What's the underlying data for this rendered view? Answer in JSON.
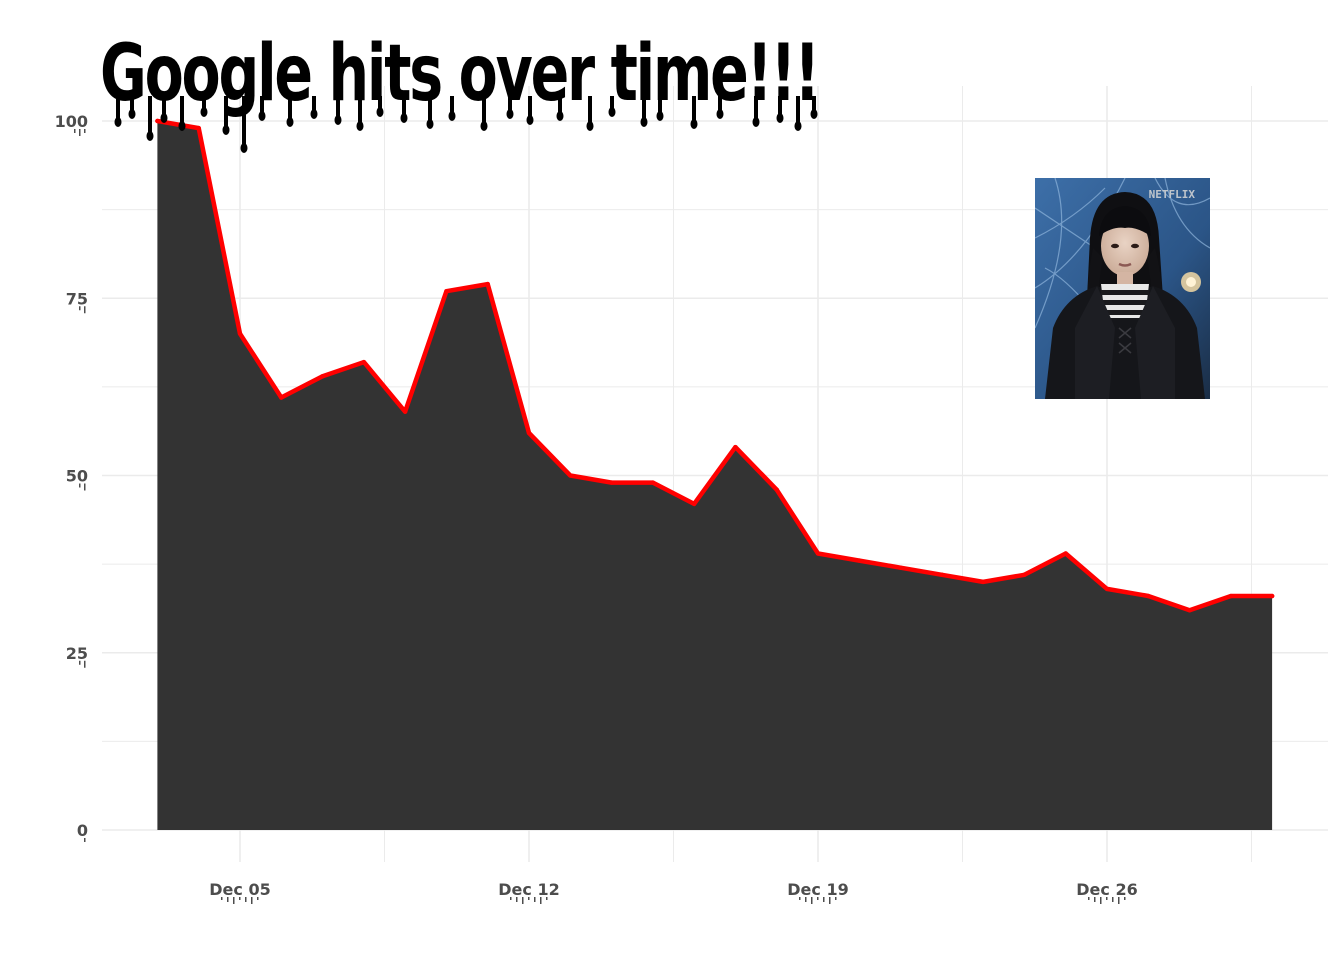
{
  "chart_data": {
    "type": "area",
    "title": "Google hits over time!!!",
    "xlabel": "",
    "ylabel": "",
    "x": [
      "2022-12-03",
      "2022-12-04",
      "2022-12-05",
      "2022-12-06",
      "2022-12-07",
      "2022-12-08",
      "2022-12-09",
      "2022-12-10",
      "2022-12-11",
      "2022-12-12",
      "2022-12-13",
      "2022-12-14",
      "2022-12-15",
      "2022-12-16",
      "2022-12-17",
      "2022-12-18",
      "2022-12-19",
      "2022-12-20",
      "2022-12-21",
      "2022-12-22",
      "2022-12-23",
      "2022-12-24",
      "2022-12-25",
      "2022-12-26",
      "2022-12-27",
      "2022-12-28",
      "2022-12-29",
      "2022-12-30"
    ],
    "values": [
      100,
      99,
      70,
      61,
      64,
      66,
      59,
      76,
      77,
      56,
      50,
      49,
      49,
      46,
      54,
      48,
      39,
      38,
      37,
      36,
      35,
      36,
      39,
      34,
      33,
      31,
      33,
      33
    ],
    "ylim": [
      0,
      100
    ],
    "yticks": [
      0,
      25,
      50,
      75,
      100
    ],
    "ytick_labels": [
      "0",
      "25",
      "50",
      "75",
      "100"
    ],
    "xticks": [
      "2022-12-05",
      "2022-12-12",
      "2022-12-19",
      "2022-12-26"
    ],
    "xtick_labels": [
      "Dec 05",
      "Dec 12",
      "Dec 19",
      "Dec 26"
    ],
    "grid": true,
    "fill_color": "#333333",
    "line_color": "#ff0000",
    "grid_color": "#ebebeb"
  },
  "inset_image": {
    "watermark": "NETFLIX"
  }
}
